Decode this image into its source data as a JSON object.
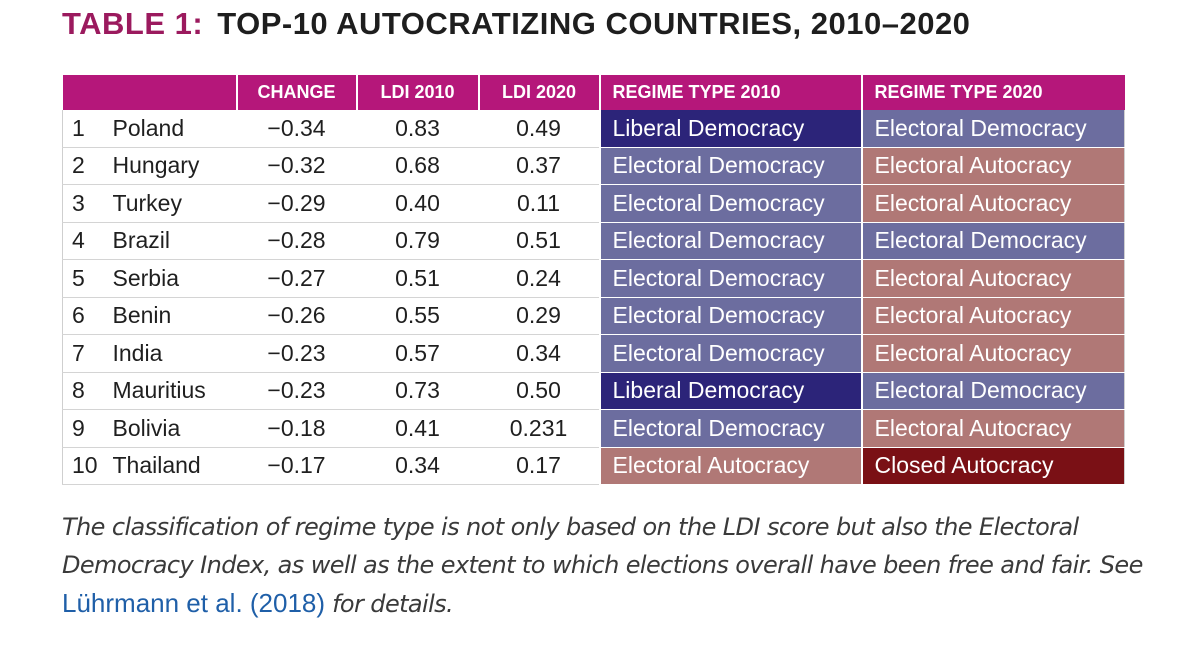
{
  "title": {
    "prefix": "TABLE 1:",
    "text": "TOP-10 AUTOCRATIZING COUNTRIES, 2010–2020"
  },
  "table": {
    "headers": [
      "",
      "",
      "CHANGE",
      "LDI 2010",
      "LDI 2020",
      "REGIME TYPE 2010",
      "REGIME TYPE 2020"
    ],
    "rows": [
      {
        "rank": "1",
        "country": "Poland",
        "change": "−0.34",
        "ldi2010": "0.83",
        "ldi2020": "0.49",
        "regime2010": "Liberal Democracy",
        "regime2020": "Electoral Democracy"
      },
      {
        "rank": "2",
        "country": "Hungary",
        "change": "−0.32",
        "ldi2010": "0.68",
        "ldi2020": "0.37",
        "regime2010": "Electoral Democracy",
        "regime2020": "Electoral Autocracy"
      },
      {
        "rank": "3",
        "country": "Turkey",
        "change": "−0.29",
        "ldi2010": "0.40",
        "ldi2020": "0.11",
        "regime2010": "Electoral Democracy",
        "regime2020": "Electoral Autocracy"
      },
      {
        "rank": "4",
        "country": "Brazil",
        "change": "−0.28",
        "ldi2010": "0.79",
        "ldi2020": "0.51",
        "regime2010": "Electoral Democracy",
        "regime2020": "Electoral Democracy"
      },
      {
        "rank": "5",
        "country": "Serbia",
        "change": "−0.27",
        "ldi2010": "0.51",
        "ldi2020": "0.24",
        "regime2010": "Electoral Democracy",
        "regime2020": "Electoral Autocracy"
      },
      {
        "rank": "6",
        "country": "Benin",
        "change": "−0.26",
        "ldi2010": "0.55",
        "ldi2020": "0.29",
        "regime2010": "Electoral Democracy",
        "regime2020": "Electoral Autocracy"
      },
      {
        "rank": "7",
        "country": "India",
        "change": "−0.23",
        "ldi2010": "0.57",
        "ldi2020": "0.34",
        "regime2010": "Electoral Democracy",
        "regime2020": "Electoral Autocracy"
      },
      {
        "rank": "8",
        "country": "Mauritius",
        "change": "−0.23",
        "ldi2010": "0.73",
        "ldi2020": "0.50",
        "regime2010": "Liberal Democracy",
        "regime2020": "Electoral Democracy"
      },
      {
        "rank": "9",
        "country": "Bolivia",
        "change": "−0.18",
        "ldi2010": "0.41",
        "ldi2020": "0.231",
        "regime2010": "Electoral Democracy",
        "regime2020": "Electoral Autocracy"
      },
      {
        "rank": "10",
        "country": "Thailand",
        "change": "−0.17",
        "ldi2010": "0.34",
        "ldi2020": "0.17",
        "regime2010": "Electoral Autocracy",
        "regime2020": "Closed Autocracy"
      }
    ]
  },
  "regime_colors": {
    "Liberal Democracy": "#2c2479",
    "Electoral Democracy": "#6c6d9f",
    "Electoral Autocracy": "#b07876",
    "Closed Autocracy": "#7a1015"
  },
  "caption": {
    "text": "The classification of regime type is not only based on the LDI score but also the Electoral Democracy Index, as well as the extent to which elections overall have been free and fair. See ",
    "citation": "Lührmann et al. (2018)",
    "suffix": " for details."
  }
}
